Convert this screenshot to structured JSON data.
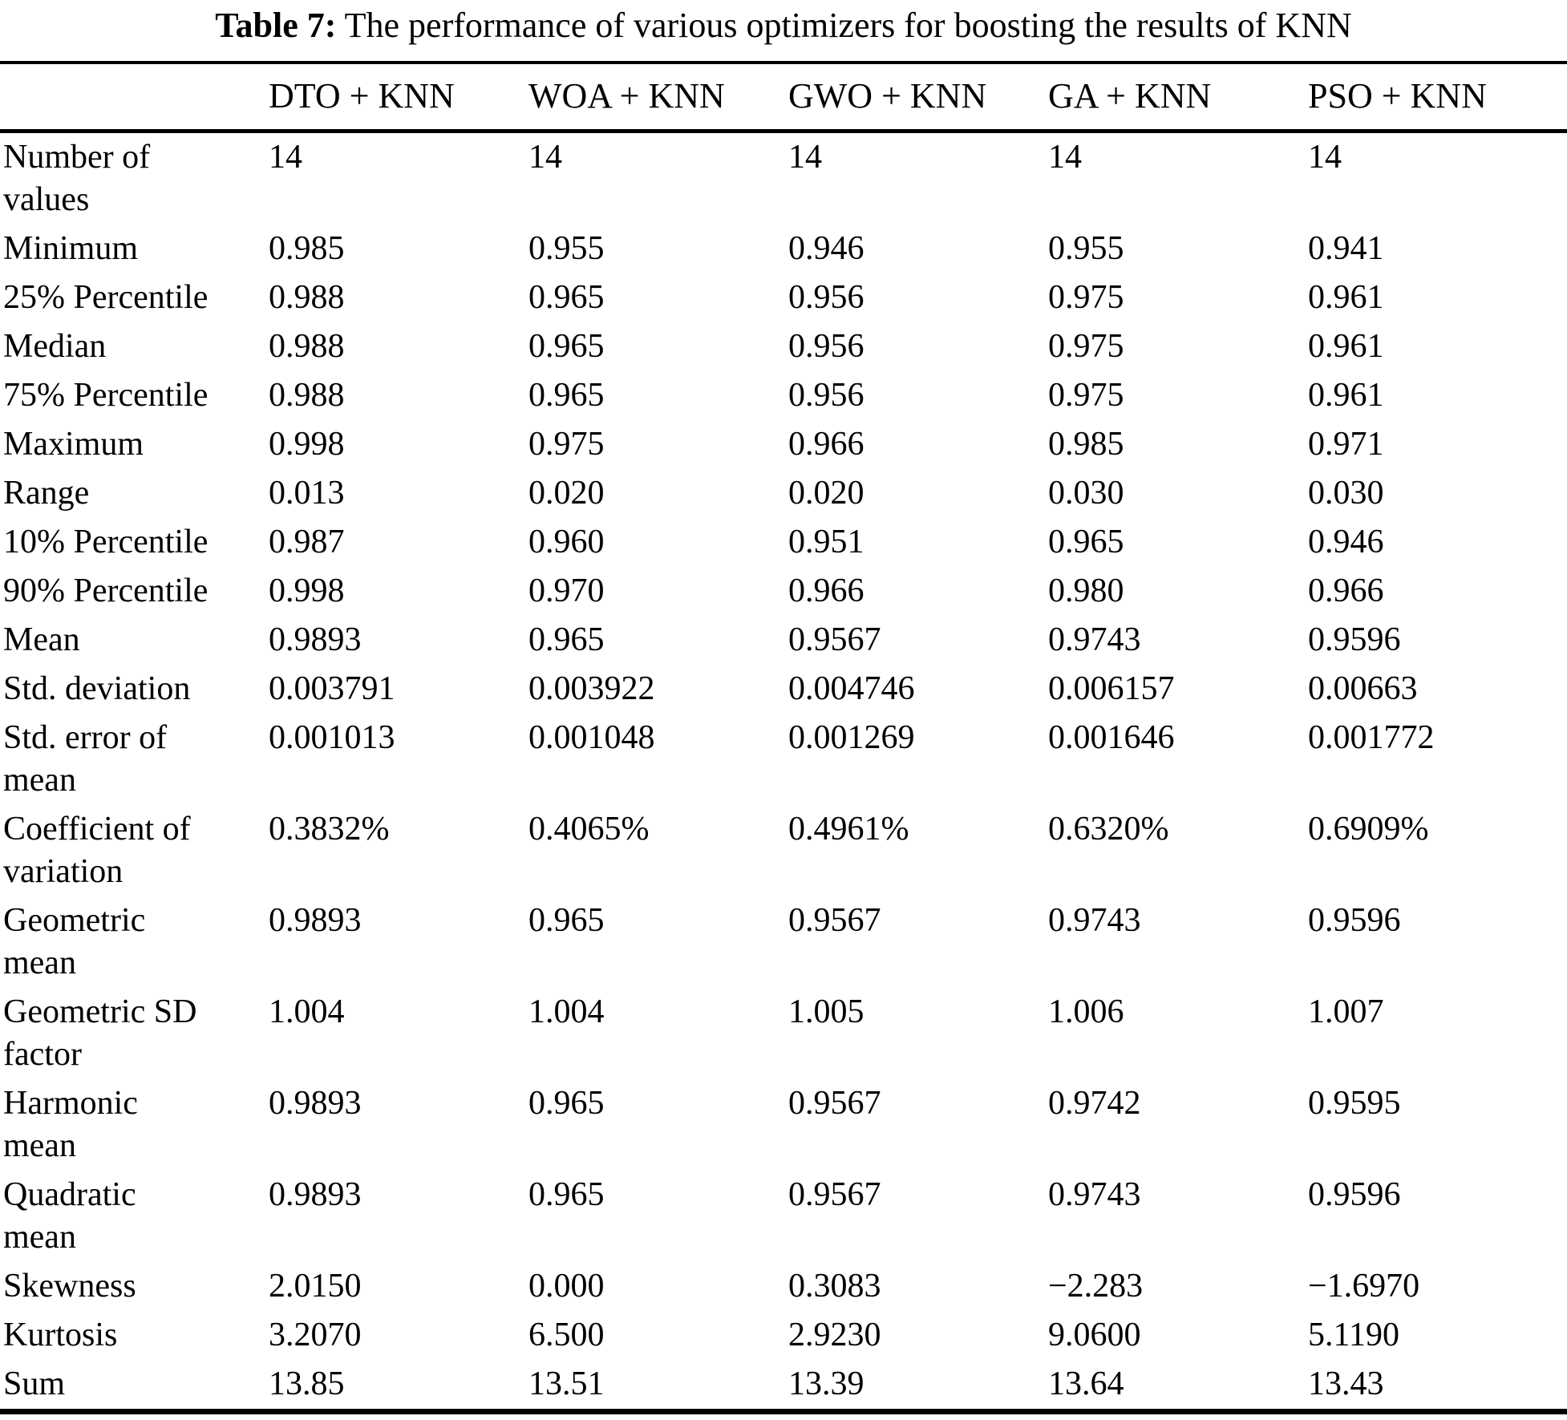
{
  "caption": {
    "label": "Table 7:",
    "text": " The performance of various optimizers for boosting the results of KNN"
  },
  "table": {
    "corner": "",
    "columns": [
      "DTO + KNN",
      "WOA + KNN",
      "GWO + KNN",
      "GA + KNN",
      "PSO + KNN"
    ],
    "rows": [
      {
        "label": "Number of\nvalues",
        "values": [
          "14",
          "14",
          "14",
          "14",
          "14"
        ]
      },
      {
        "label": "Minimum",
        "values": [
          "0.985",
          "0.955",
          "0.946",
          "0.955",
          "0.941"
        ]
      },
      {
        "label": "25% Percentile",
        "values": [
          "0.988",
          "0.965",
          "0.956",
          "0.975",
          "0.961"
        ]
      },
      {
        "label": "Median",
        "values": [
          "0.988",
          "0.965",
          "0.956",
          "0.975",
          "0.961"
        ]
      },
      {
        "label": "75% Percentile",
        "values": [
          "0.988",
          "0.965",
          "0.956",
          "0.975",
          "0.961"
        ]
      },
      {
        "label": "Maximum",
        "values": [
          "0.998",
          "0.975",
          "0.966",
          "0.985",
          "0.971"
        ]
      },
      {
        "label": "Range",
        "values": [
          "0.013",
          "0.020",
          "0.020",
          "0.030",
          "0.030"
        ]
      },
      {
        "label": "10% Percentile",
        "values": [
          "0.987",
          "0.960",
          "0.951",
          "0.965",
          "0.946"
        ]
      },
      {
        "label": "90% Percentile",
        "values": [
          "0.998",
          "0.970",
          "0.966",
          "0.980",
          "0.966"
        ]
      },
      {
        "label": "Mean",
        "values": [
          "0.9893",
          "0.965",
          "0.9567",
          "0.9743",
          "0.9596"
        ]
      },
      {
        "label": "Std. deviation",
        "values": [
          "0.003791",
          "0.003922",
          "0.004746",
          "0.006157",
          "0.00663"
        ]
      },
      {
        "label": "Std. error of\nmean",
        "values": [
          "0.001013",
          "0.001048",
          "0.001269",
          "0.001646",
          "0.001772"
        ]
      },
      {
        "label": "Coefficient of\nvariation",
        "values": [
          "0.3832%",
          "0.4065%",
          "0.4961%",
          "0.6320%",
          "0.6909%"
        ]
      },
      {
        "label": "Geometric\nmean",
        "values": [
          "0.9893",
          "0.965",
          "0.9567",
          "0.9743",
          "0.9596"
        ]
      },
      {
        "label": "Geometric SD\nfactor",
        "values": [
          "1.004",
          "1.004",
          "1.005",
          "1.006",
          "1.007"
        ]
      },
      {
        "label": "Harmonic\nmean",
        "values": [
          "0.9893",
          "0.965",
          "0.9567",
          "0.9742",
          "0.9595"
        ]
      },
      {
        "label": "Quadratic\nmean",
        "values": [
          "0.9893",
          "0.965",
          "0.9567",
          "0.9743",
          "0.9596"
        ]
      },
      {
        "label": "Skewness",
        "values": [
          "2.0150",
          "0.000",
          "0.3083",
          "−2.283",
          "−1.6970"
        ]
      },
      {
        "label": "Kurtosis",
        "values": [
          "3.2070",
          "6.500",
          "2.9230",
          "9.0600",
          "5.1190"
        ]
      },
      {
        "label": "Sum",
        "values": [
          "13.85",
          "13.51",
          "13.39",
          "13.64",
          "13.43"
        ]
      }
    ]
  }
}
